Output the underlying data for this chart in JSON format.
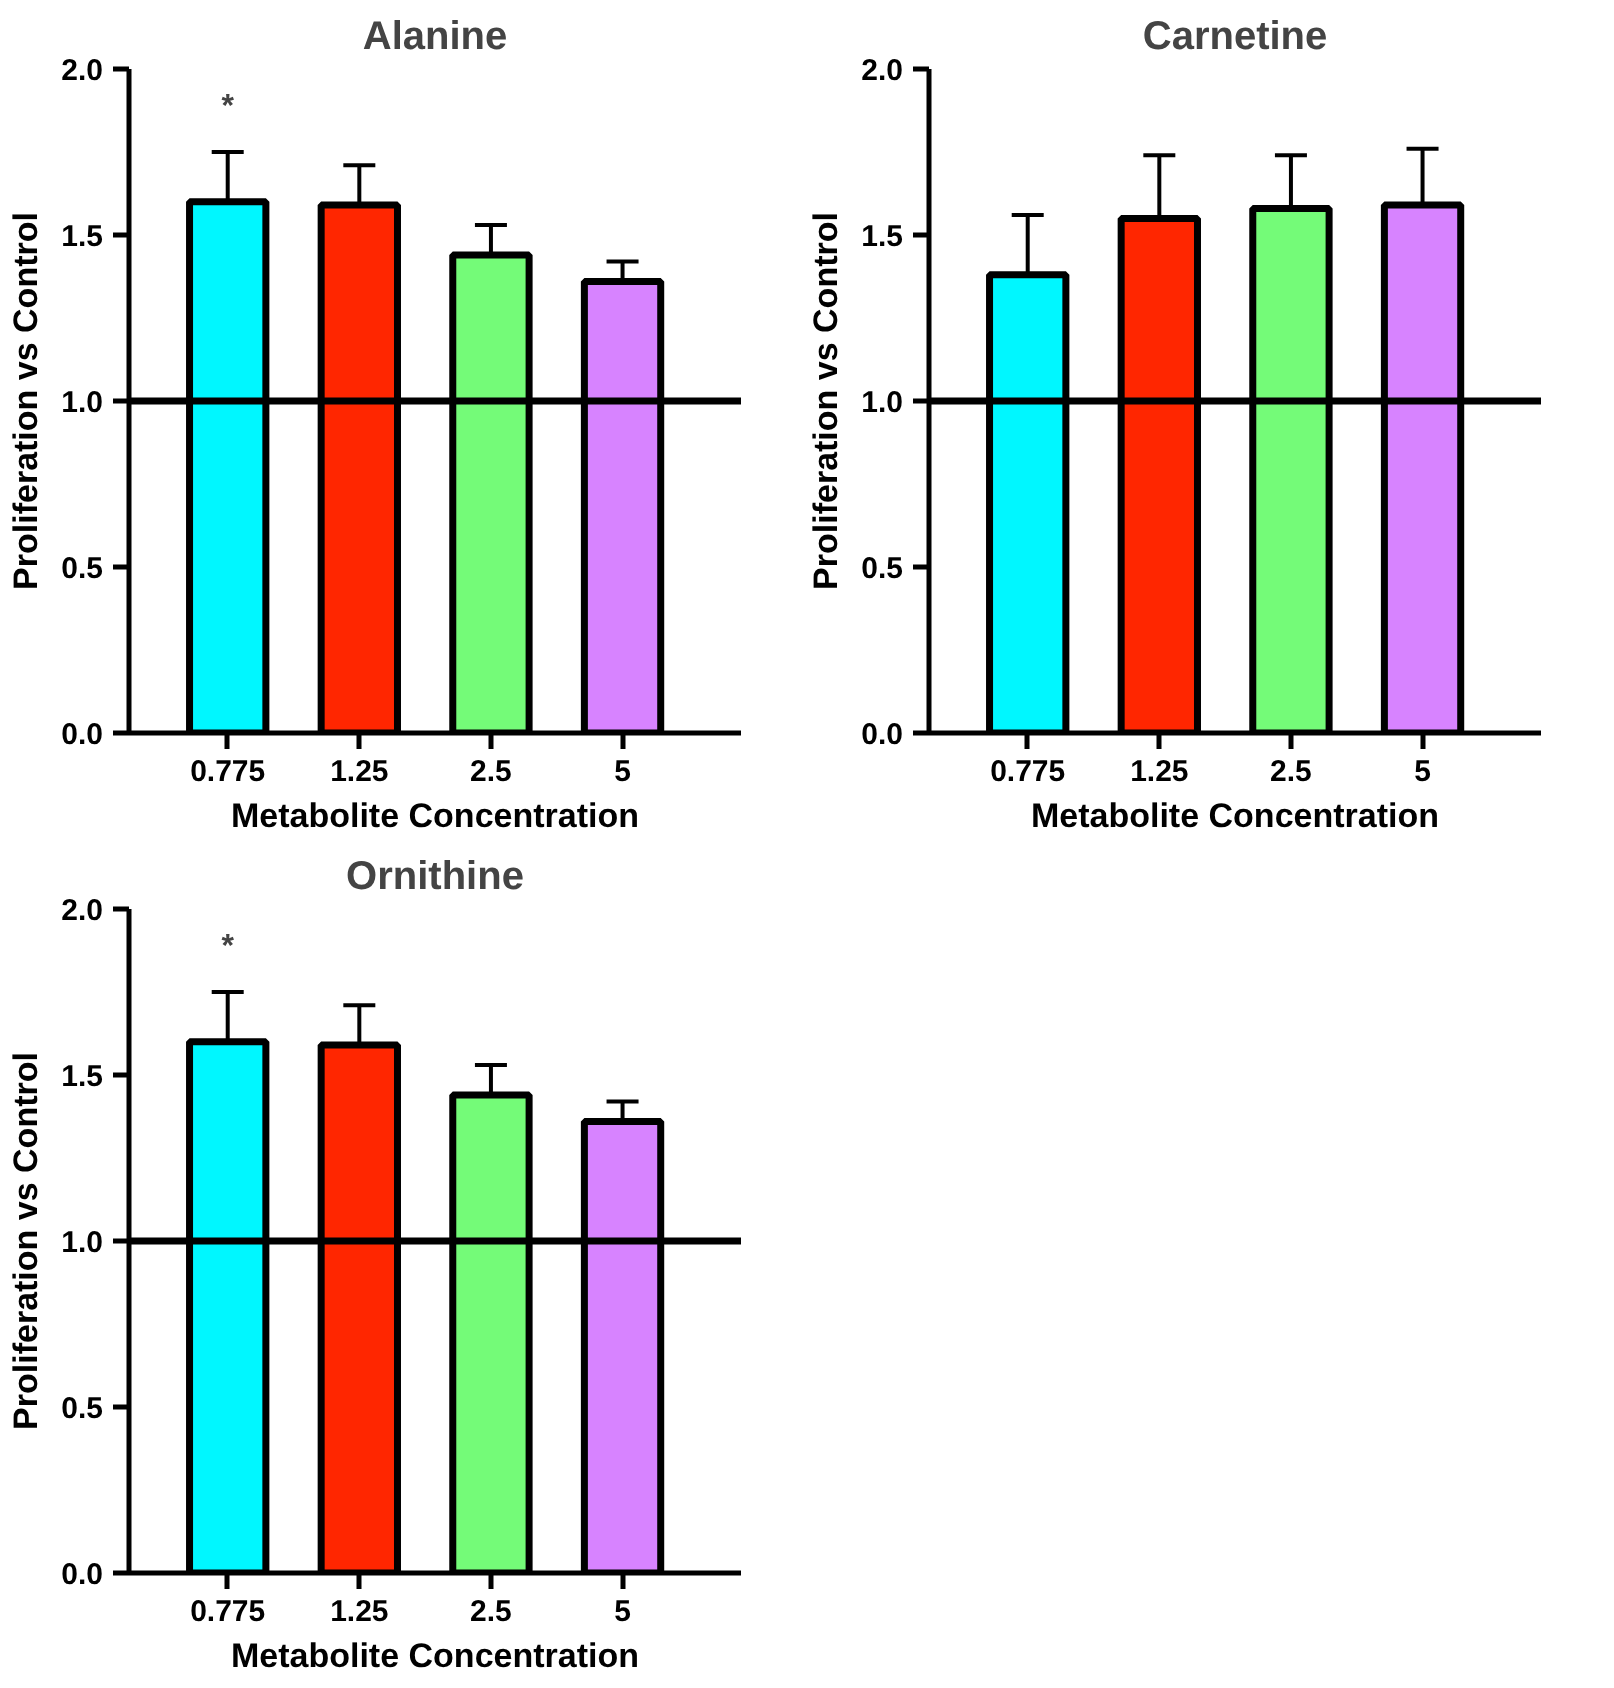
{
  "chart_data": [
    {
      "type": "bar",
      "title": "Alanine",
      "xlabel": "Metabolite Concentration",
      "ylabel": "Proliferation vs Control",
      "categories": [
        "0.775",
        "1.25",
        "2.5",
        "5"
      ],
      "values": [
        1.6,
        1.59,
        1.44,
        1.36
      ],
      "colors": [
        "#00f7ff",
        "#ff2600",
        "#74fb78",
        "#d783ff"
      ],
      "errors": [
        [
          1.6,
          1.75
        ],
        [
          1.59,
          1.71
        ],
        [
          1.44,
          1.53
        ],
        [
          1.36,
          1.42
        ]
      ],
      "ylim": [
        0,
        2
      ],
      "yticks": [
        {
          "value": 0,
          "label": "0.0"
        },
        {
          "value": 0.5,
          "label": "0.5"
        },
        {
          "value": 1,
          "label": "1.0"
        },
        {
          "value": 1.5,
          "label": "1.5"
        },
        {
          "value": 2,
          "label": "2.0"
        }
      ],
      "ref_lines": [
        {
          "axis": "y",
          "value": 1,
          "color": "#000000"
        }
      ],
      "annotations": [
        "*"
      ],
      "grid": false
    },
    {
      "type": "bar",
      "title": "Carnetine",
      "xlabel": "Metabolite Concentration",
      "ylabel": "Proliferation vs Control",
      "categories": [
        "0.775",
        "1.25",
        "2.5",
        "5"
      ],
      "values": [
        1.38,
        1.55,
        1.58,
        1.59
      ],
      "colors": [
        "#00f7ff",
        "#ff2600",
        "#74fb78",
        "#d783ff"
      ],
      "errors": [
        [
          1.38,
          1.56
        ],
        [
          1.55,
          1.74
        ],
        [
          1.58,
          1.74
        ],
        [
          1.59,
          1.76
        ]
      ],
      "ylim": [
        0,
        2
      ],
      "yticks": [
        {
          "value": 0,
          "label": "0.0"
        },
        {
          "value": 0.5,
          "label": "0.5"
        },
        {
          "value": 1,
          "label": "1.0"
        },
        {
          "value": 1.5,
          "label": "1.5"
        },
        {
          "value": 2,
          "label": "2.0"
        }
      ],
      "ref_lines": [
        {
          "axis": "y",
          "value": 1,
          "color": "#000000"
        }
      ],
      "grid": false
    },
    {
      "type": "bar",
      "title": "Ornithine",
      "xlabel": "Metabolite Concentration",
      "ylabel": "Proliferation vs Control",
      "categories": [
        "0.775",
        "1.25",
        "2.5",
        "5"
      ],
      "values": [
        1.6,
        1.59,
        1.44,
        1.36
      ],
      "colors": [
        "#00f7ff",
        "#ff2600",
        "#74fb78",
        "#d783ff"
      ],
      "errors": [
        [
          1.6,
          1.75
        ],
        [
          1.59,
          1.71
        ],
        [
          1.44,
          1.53
        ],
        [
          1.36,
          1.42
        ]
      ],
      "ylim": [
        0,
        2
      ],
      "yticks": [
        {
          "value": 0,
          "label": "0.0"
        },
        {
          "value": 0.5,
          "label": "0.5"
        },
        {
          "value": 1,
          "label": "1.0"
        },
        {
          "value": 1.5,
          "label": "1.5"
        },
        {
          "value": 2,
          "label": "2.0"
        }
      ],
      "ref_lines": [
        {
          "axis": "y",
          "value": 1,
          "color": "#000000"
        }
      ],
      "annotations": [
        "*"
      ],
      "grid": false
    }
  ]
}
